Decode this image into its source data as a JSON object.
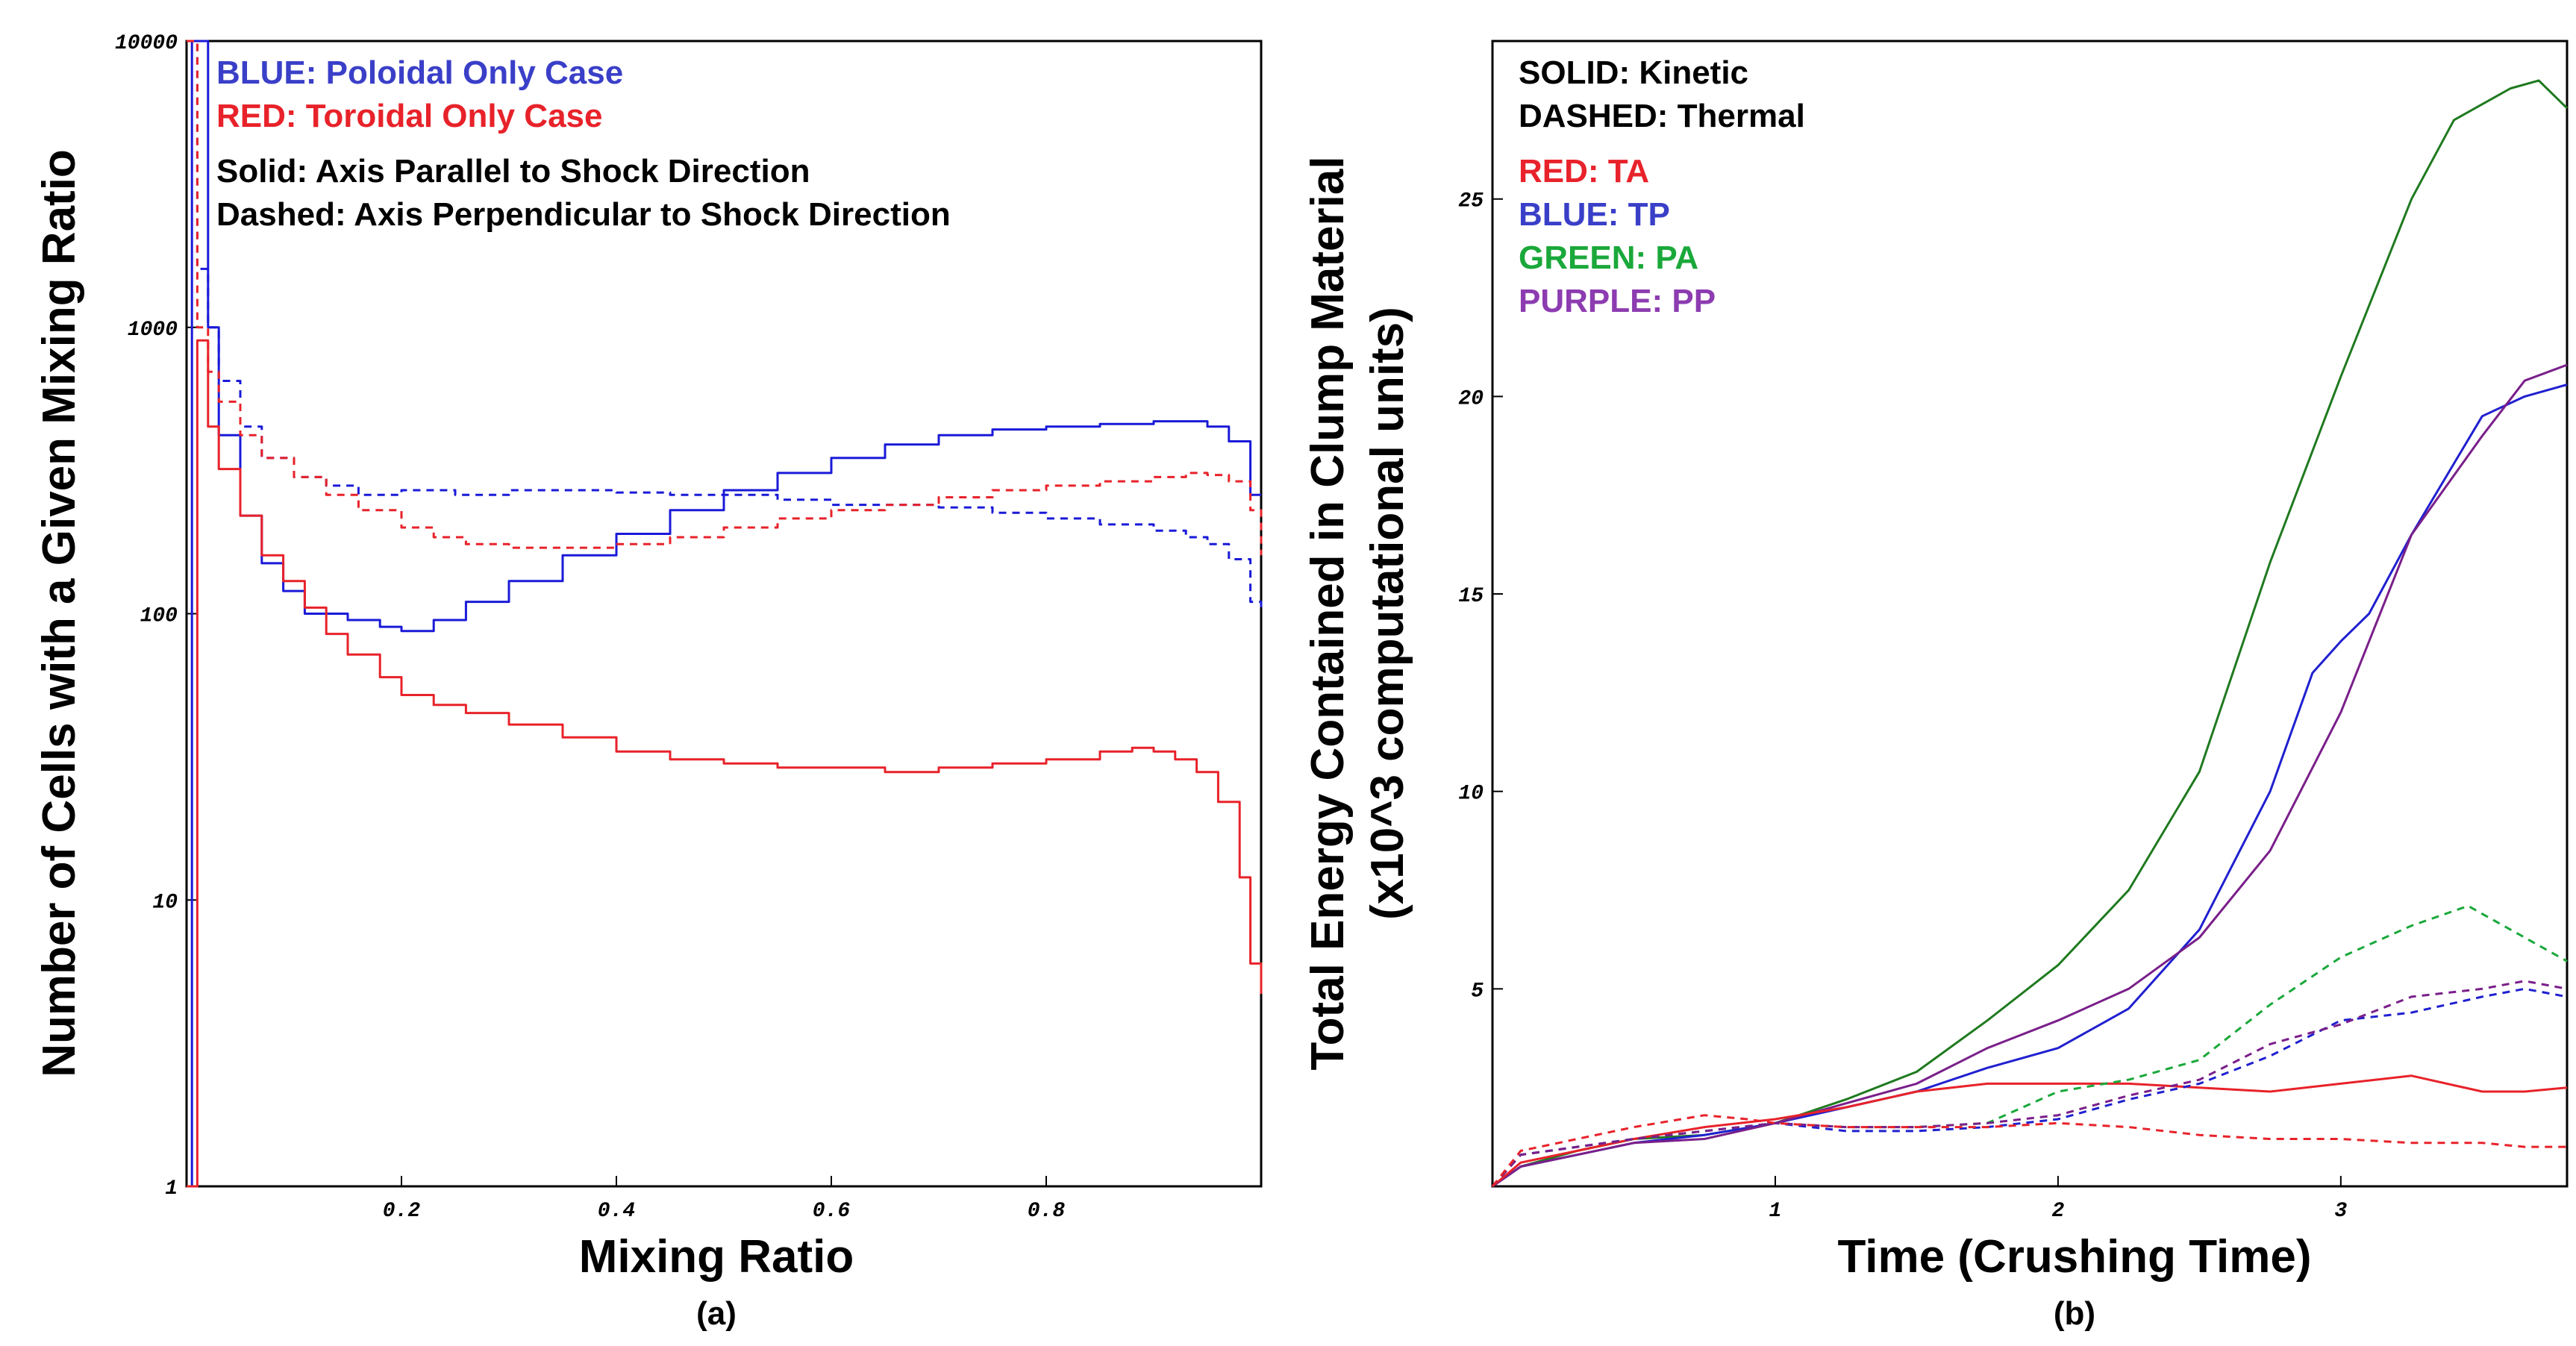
{
  "chart_data": [
    {
      "type": "line",
      "panel_label": "(a)",
      "xlabel": "Mixing Ratio",
      "ylabel": "Number of Cells with a Given Mixing Ratio",
      "x_scale": "linear",
      "y_scale": "log",
      "xlim": [
        0,
        1
      ],
      "ylim": [
        1,
        10000
      ],
      "x_ticks": [
        "0.2",
        "0.4",
        "0.6",
        "0.8"
      ],
      "y_ticks": [
        "1",
        "10",
        "100",
        "1000",
        "10000"
      ],
      "grid": false,
      "legend_position": "top-left",
      "legend_lines": [
        {
          "text": "BLUE: Poloidal Only Case",
          "color": "#3a3fc8"
        },
        {
          "text": "RED: Toroidal Only Case",
          "color": "#e8222a"
        },
        {
          "text": "Solid: Axis Parallel to Shock Direction",
          "color": "#000000"
        },
        {
          "text": "Dashed: Axis Perpendicular to Shock Direction",
          "color": "#000000"
        }
      ],
      "series": [
        {
          "color": "#1a1ad8",
          "dash": "solid",
          "x": [
            0.0,
            0.005,
            0.01,
            0.02,
            0.03,
            0.05,
            0.07,
            0.09,
            0.11,
            0.13,
            0.15,
            0.18,
            0.2,
            0.23,
            0.26,
            0.3,
            0.35,
            0.4,
            0.45,
            0.5,
            0.55,
            0.6,
            0.65,
            0.7,
            0.75,
            0.8,
            0.85,
            0.9,
            0.93,
            0.95,
            0.97,
            0.99,
            1.0
          ],
          "y": [
            1,
            10000,
            10000,
            1000,
            420,
            220,
            150,
            120,
            100,
            100,
            95,
            90,
            87,
            95,
            110,
            130,
            160,
            190,
            230,
            270,
            310,
            350,
            390,
            420,
            440,
            450,
            460,
            470,
            470,
            450,
            400,
            260,
            260
          ]
        },
        {
          "color": "#1a1ad8",
          "dash": "dashed",
          "x": [
            0.0,
            0.01,
            0.02,
            0.03,
            0.05,
            0.07,
            0.1,
            0.13,
            0.16,
            0.2,
            0.25,
            0.3,
            0.35,
            0.4,
            0.45,
            0.5,
            0.55,
            0.6,
            0.65,
            0.7,
            0.75,
            0.8,
            0.85,
            0.9,
            0.93,
            0.95,
            0.97,
            0.99,
            1.0
          ],
          "y": [
            10000,
            1600,
            1000,
            650,
            450,
            350,
            300,
            280,
            260,
            270,
            260,
            270,
            270,
            265,
            260,
            260,
            250,
            240,
            240,
            235,
            225,
            215,
            205,
            195,
            185,
            175,
            155,
            110,
            105
          ]
        },
        {
          "color": "#e8222a",
          "dash": "solid",
          "x": [
            0.0,
            0.01,
            0.02,
            0.03,
            0.05,
            0.07,
            0.09,
            0.11,
            0.13,
            0.15,
            0.18,
            0.2,
            0.23,
            0.26,
            0.3,
            0.35,
            0.4,
            0.45,
            0.5,
            0.55,
            0.6,
            0.65,
            0.7,
            0.75,
            0.8,
            0.85,
            0.88,
            0.9,
            0.92,
            0.94,
            0.96,
            0.98,
            0.99,
            1.0
          ],
          "y": [
            1,
            900,
            450,
            320,
            220,
            160,
            130,
            105,
            85,
            72,
            60,
            52,
            48,
            45,
            41,
            37,
            33,
            31,
            30,
            29,
            29,
            28,
            29,
            30,
            31,
            33,
            34,
            33,
            31,
            28,
            22,
            12,
            6,
            4.7
          ]
        },
        {
          "color": "#e8222a",
          "dash": "dashed",
          "x": [
            0.0,
            0.01,
            0.02,
            0.03,
            0.05,
            0.07,
            0.1,
            0.13,
            0.16,
            0.2,
            0.23,
            0.26,
            0.3,
            0.35,
            0.4,
            0.45,
            0.5,
            0.55,
            0.6,
            0.65,
            0.7,
            0.75,
            0.8,
            0.85,
            0.9,
            0.93,
            0.95,
            0.97,
            0.99,
            1.0
          ],
          "y": [
            10000,
            1000,
            700,
            550,
            420,
            350,
            300,
            260,
            230,
            200,
            185,
            175,
            170,
            170,
            175,
            185,
            200,
            215,
            230,
            240,
            255,
            270,
            280,
            290,
            300,
            310,
            305,
            290,
            230,
            160
          ]
        }
      ]
    },
    {
      "type": "line",
      "panel_label": "(b)",
      "xlabel": "Time (Crushing Time)",
      "ylabel": "Total Energy Contained in Clump Material",
      "ylabel2": "(x10^3 computational units)",
      "xlim": [
        0,
        3.8
      ],
      "ylim": [
        0,
        29
      ],
      "x_ticks": [
        "1",
        "2",
        "3"
      ],
      "y_ticks": [
        "5",
        "10",
        "15",
        "20",
        "25"
      ],
      "grid": false,
      "legend_position": "top-left",
      "legend_lines": [
        {
          "text": "SOLID: Kinetic",
          "color": "#000000"
        },
        {
          "text": "DASHED: Thermal",
          "color": "#000000"
        },
        {
          "text": "RED: TA",
          "color": "#e8222a"
        },
        {
          "text": "BLUE: TP",
          "color": "#3a3fc8"
        },
        {
          "text": "GREEN: PA",
          "color": "#1aa83a"
        },
        {
          "text": "PURPLE: PP",
          "color": "#8c3cb0"
        }
      ],
      "series": [
        {
          "color": "#1f7a1f",
          "dash": "solid",
          "x": [
            0,
            0.1,
            0.3,
            0.5,
            0.75,
            1.0,
            1.25,
            1.5,
            1.75,
            2.0,
            2.25,
            2.5,
            2.75,
            3.0,
            3.25,
            3.4,
            3.5,
            3.6,
            3.7,
            3.8
          ],
          "y": [
            0,
            0.5,
            0.9,
            1.2,
            1.3,
            1.6,
            2.2,
            2.9,
            4.2,
            5.6,
            7.5,
            10.5,
            15.8,
            20.5,
            25.0,
            27.0,
            27.4,
            27.8,
            28.0,
            27.3
          ]
        },
        {
          "color": "#2020d0",
          "dash": "solid",
          "x": [
            0,
            0.1,
            0.3,
            0.5,
            0.75,
            1.0,
            1.25,
            1.5,
            1.75,
            2.0,
            2.25,
            2.5,
            2.75,
            2.9,
            3.0,
            3.1,
            3.25,
            3.5,
            3.65,
            3.8
          ],
          "y": [
            0,
            0.5,
            0.8,
            1.1,
            1.3,
            1.6,
            2.0,
            2.4,
            3.0,
            3.5,
            4.5,
            6.5,
            10.0,
            13.0,
            13.8,
            14.5,
            16.5,
            19.5,
            20.0,
            20.3
          ]
        },
        {
          "color": "#7a1f8a",
          "dash": "solid",
          "x": [
            0,
            0.1,
            0.3,
            0.5,
            0.75,
            1.0,
            1.25,
            1.5,
            1.75,
            2.0,
            2.25,
            2.5,
            2.75,
            3.0,
            3.25,
            3.5,
            3.65,
            3.8
          ],
          "y": [
            0,
            0.5,
            0.8,
            1.1,
            1.2,
            1.6,
            2.1,
            2.6,
            3.5,
            4.2,
            5.0,
            6.3,
            8.5,
            12.0,
            16.5,
            19.0,
            20.4,
            20.8
          ]
        },
        {
          "color": "#e8222a",
          "dash": "solid",
          "x": [
            0,
            0.1,
            0.3,
            0.5,
            0.75,
            1.0,
            1.25,
            1.5,
            1.75,
            2.0,
            2.25,
            2.5,
            2.75,
            3.0,
            3.25,
            3.5,
            3.65,
            3.8
          ],
          "y": [
            0,
            0.6,
            0.9,
            1.2,
            1.5,
            1.7,
            2.0,
            2.4,
            2.6,
            2.6,
            2.6,
            2.5,
            2.4,
            2.6,
            2.8,
            2.4,
            2.4,
            2.5
          ]
        },
        {
          "color": "#1aa83a",
          "dash": "dashed",
          "x": [
            0,
            0.1,
            0.3,
            0.5,
            0.75,
            1.0,
            1.25,
            1.5,
            1.75,
            2.0,
            2.25,
            2.5,
            2.75,
            3.0,
            3.25,
            3.45,
            3.6,
            3.8
          ],
          "y": [
            0,
            0.8,
            1.0,
            1.2,
            1.4,
            1.6,
            1.5,
            1.5,
            1.6,
            2.4,
            2.7,
            3.2,
            4.6,
            5.8,
            6.6,
            7.1,
            6.5,
            5.7
          ]
        },
        {
          "color": "#2020d0",
          "dash": "dashed",
          "x": [
            0,
            0.1,
            0.3,
            0.5,
            0.75,
            1.0,
            1.25,
            1.5,
            1.75,
            2.0,
            2.25,
            2.5,
            2.75,
            3.0,
            3.25,
            3.5,
            3.65,
            3.8
          ],
          "y": [
            0,
            0.8,
            1.0,
            1.2,
            1.4,
            1.6,
            1.4,
            1.4,
            1.5,
            1.7,
            2.2,
            2.6,
            3.3,
            4.2,
            4.4,
            4.8,
            5.0,
            4.8
          ]
        },
        {
          "color": "#7a1f8a",
          "dash": "dashed",
          "x": [
            0,
            0.1,
            0.3,
            0.5,
            0.75,
            1.0,
            1.25,
            1.5,
            1.75,
            2.0,
            2.25,
            2.5,
            2.75,
            3.0,
            3.25,
            3.5,
            3.65,
            3.8
          ],
          "y": [
            0,
            0.8,
            1.0,
            1.2,
            1.4,
            1.6,
            1.5,
            1.5,
            1.6,
            1.8,
            2.3,
            2.7,
            3.6,
            4.1,
            4.8,
            5.0,
            5.2,
            5.0
          ]
        },
        {
          "color": "#e8222a",
          "dash": "dashed",
          "x": [
            0,
            0.1,
            0.3,
            0.5,
            0.75,
            0.9,
            1.0,
            1.25,
            1.5,
            1.75,
            2.0,
            2.25,
            2.5,
            2.75,
            3.0,
            3.25,
            3.5,
            3.65,
            3.8
          ],
          "y": [
            0,
            0.9,
            1.2,
            1.5,
            1.8,
            1.7,
            1.6,
            1.5,
            1.5,
            1.5,
            1.6,
            1.5,
            1.3,
            1.2,
            1.2,
            1.1,
            1.1,
            1.0,
            1.0
          ]
        }
      ]
    }
  ]
}
